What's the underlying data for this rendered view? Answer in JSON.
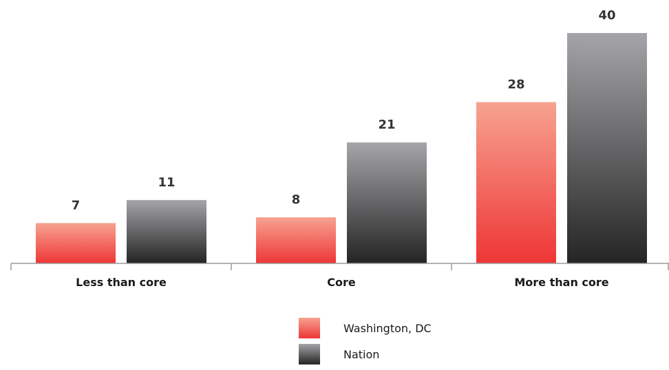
{
  "chart_data": {
    "type": "bar",
    "categories": [
      "Less than core",
      "Core",
      "More than core"
    ],
    "series": [
      {
        "name": "Washington, DC",
        "values": [
          7,
          8,
          28
        ],
        "gradient_top": "#f7a290",
        "gradient_bottom": "#ee3636"
      },
      {
        "name": "Nation",
        "values": [
          11,
          21,
          40
        ],
        "gradient_top": "#a5a5a9",
        "gradient_bottom": "#242424"
      }
    ],
    "value_labels": [
      [
        "7",
        "8",
        "28"
      ],
      [
        "11",
        "21",
        "40"
      ]
    ],
    "ylim": [
      0,
      40
    ],
    "grid": false,
    "legend_position": "bottom-center"
  }
}
